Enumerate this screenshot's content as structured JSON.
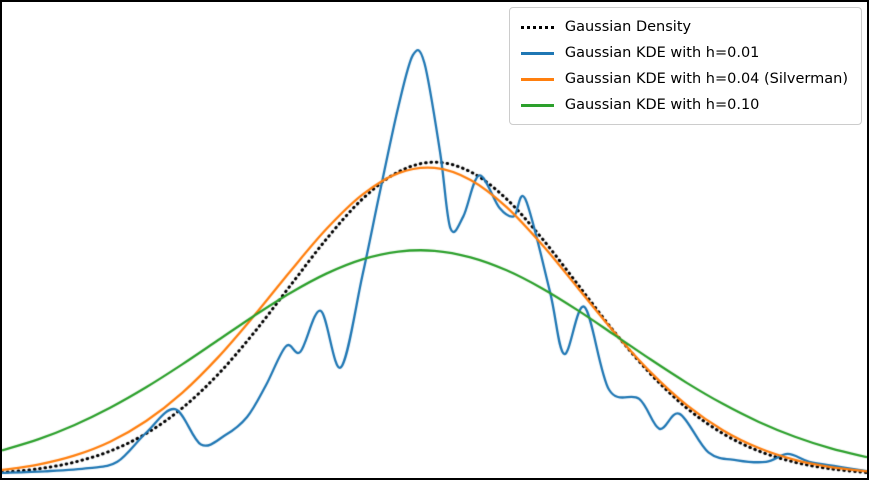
{
  "chart_data": {
    "type": "line",
    "title": "",
    "xlabel": "",
    "ylabel": "",
    "xlim": [
      -3,
      3
    ],
    "ylim": [
      0,
      0.6
    ],
    "grid": false,
    "legend_position": "upper right",
    "background_color": "#ffffff",
    "frame_color": "#000000",
    "series": [
      {
        "label": "Gaussian Density",
        "color": "#000000",
        "style": "dotted",
        "linewidth": 3,
        "x": [
          -3,
          -2.75,
          -2.5,
          -2.25,
          -2,
          -1.75,
          -1.5,
          -1.25,
          -1,
          -0.75,
          -0.5,
          -0.25,
          0,
          0.25,
          0.5,
          0.75,
          1,
          1.25,
          1.5,
          1.75,
          2,
          2.25,
          2.5,
          2.75,
          3
        ],
        "y": [
          0.0044,
          0.0091,
          0.0175,
          0.0317,
          0.054,
          0.0863,
          0.1295,
          0.1826,
          0.242,
          0.3011,
          0.3521,
          0.3867,
          0.3989,
          0.3867,
          0.3521,
          0.3011,
          0.242,
          0.1826,
          0.1295,
          0.0863,
          0.054,
          0.0317,
          0.0175,
          0.0091,
          0.0044
        ]
      },
      {
        "label": "Gaussian KDE with h=0.01",
        "color": "#1f77b4",
        "style": "solid",
        "linewidth": 2.3,
        "x": [
          -3,
          -2.7,
          -2.4,
          -2.2,
          -2.0,
          -1.8,
          -1.62,
          -1.45,
          -1.3,
          -1.17,
          -1.03,
          -0.93,
          -0.79,
          -0.65,
          -0.5,
          -0.38,
          -0.25,
          -0.15,
          -0.07,
          0.04,
          0.11,
          0.2,
          0.31,
          0.45,
          0.55,
          0.63,
          0.8,
          0.9,
          1.04,
          1.21,
          1.42,
          1.56,
          1.7,
          1.9,
          2.1,
          2.3,
          2.45,
          2.6,
          2.8,
          3
        ],
        "y": [
          0.004,
          0.006,
          0.01,
          0.018,
          0.055,
          0.085,
          0.04,
          0.052,
          0.075,
          0.115,
          0.165,
          0.158,
          0.21,
          0.138,
          0.255,
          0.36,
          0.47,
          0.535,
          0.525,
          0.41,
          0.315,
          0.33,
          0.382,
          0.341,
          0.33,
          0.352,
          0.235,
          0.155,
          0.215,
          0.11,
          0.098,
          0.06,
          0.079,
          0.03,
          0.02,
          0.018,
          0.028,
          0.018,
          0.012,
          0.006
        ]
      },
      {
        "label": "Gaussian KDE with h=0.04 (Silverman)",
        "color": "#ff7f0e",
        "style": "solid",
        "linewidth": 2.3,
        "x": [
          -3,
          -2.75,
          -2.5,
          -2.25,
          -2,
          -1.75,
          -1.5,
          -1.25,
          -1,
          -0.75,
          -0.5,
          -0.25,
          0,
          0.25,
          0.5,
          0.75,
          1,
          1.25,
          1.5,
          1.75,
          2,
          2.25,
          2.5,
          2.75,
          3
        ],
        "y": [
          0.0076,
          0.0144,
          0.0258,
          0.0436,
          0.0699,
          0.1057,
          0.1511,
          0.204,
          0.2603,
          0.3139,
          0.3576,
          0.385,
          0.3916,
          0.3763,
          0.3418,
          0.2933,
          0.2378,
          0.1822,
          0.1318,
          0.0902,
          0.0583,
          0.0356,
          0.0205,
          0.0112,
          0.0058
        ]
      },
      {
        "label": "Gaussian KDE with h=0.10",
        "color": "#2ca02c",
        "style": "solid",
        "linewidth": 2.3,
        "x": [
          -3,
          -2.75,
          -2.5,
          -2.25,
          -2,
          -1.75,
          -1.5,
          -1.25,
          -1,
          -0.75,
          -0.5,
          -0.25,
          0,
          0.25,
          0.5,
          0.75,
          1,
          1.25,
          1.5,
          1.75,
          2,
          2.25,
          2.5,
          2.75,
          3
        ],
        "y": [
          0.0326,
          0.0466,
          0.0646,
          0.0868,
          0.1128,
          0.1419,
          0.1728,
          0.2038,
          0.2327,
          0.2573,
          0.2754,
          0.2853,
          0.2863,
          0.278,
          0.2615,
          0.2381,
          0.2099,
          0.1791,
          0.148,
          0.1184,
          0.0917,
          0.0687,
          0.0499,
          0.0351,
          0.0239
        ]
      }
    ]
  }
}
